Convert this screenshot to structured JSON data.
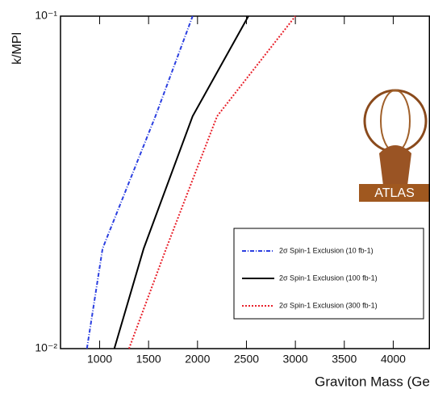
{
  "chart_data": {
    "type": "line",
    "xlabel": "Graviton Mass (GeV)",
    "ylabel": "k/MPl",
    "logo": "ATLAS",
    "xlim": [
      600,
      4370
    ],
    "xticks": [
      1000,
      1500,
      2000,
      2500,
      3000,
      3500,
      4000
    ],
    "ylim": [
      0.01,
      0.1
    ],
    "yscale": "log",
    "yticks": [
      {
        "value": 0.01,
        "label": "10⁻²"
      },
      {
        "value": 0.1,
        "label": "10⁻¹"
      }
    ],
    "legend": "lower right",
    "y": [
      0.01,
      0.02,
      0.05,
      0.1
    ],
    "series": [
      {
        "name": "2σ Spin-1 Exclusion (10 fb-1)",
        "color": "#2b3fe0",
        "style": "dashdot",
        "values": [
          870,
          1030,
          1570,
          1950
        ]
      },
      {
        "name": "2σ Spin-1 Exclusion (100 fb-1)",
        "color": "#000000",
        "style": "solid",
        "values": [
          1150,
          1450,
          1950,
          2520
        ]
      },
      {
        "name": "2σ Spin-1 Exclusion (300 fb-1)",
        "color": "#e8202a",
        "style": "dotted",
        "values": [
          1300,
          1680,
          2200,
          3000
        ]
      }
    ]
  }
}
